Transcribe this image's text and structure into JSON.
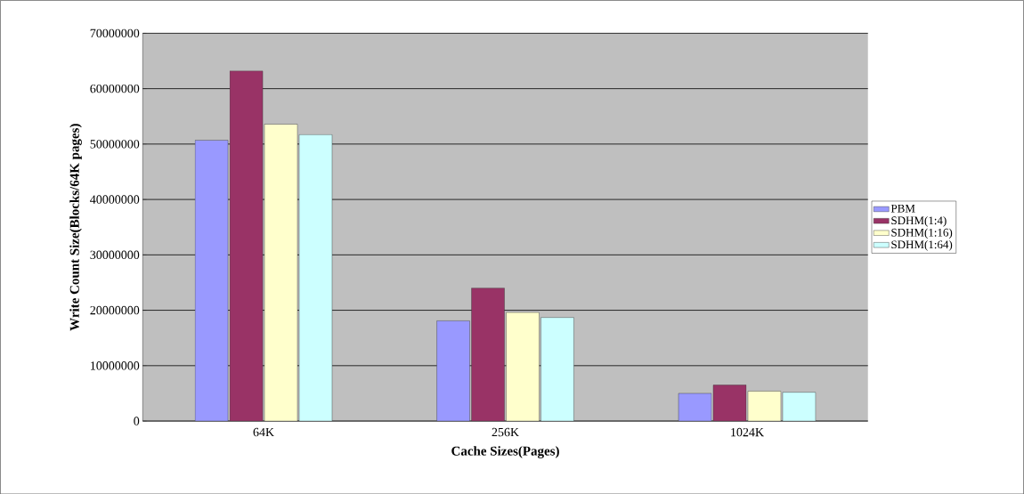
{
  "chart_data": {
    "type": "bar",
    "xlabel": "Cache Sizes(Pages)",
    "ylabel": "Write Count Size(Blocks/64K pages)",
    "categories": [
      "64K",
      "256K",
      "1024K"
    ],
    "series": [
      {
        "name": "PBM",
        "color": "#9999ff",
        "values": [
          50700000,
          18100000,
          5000000
        ]
      },
      {
        "name": "SDHM(1:4)",
        "color": "#993366",
        "values": [
          63200000,
          24000000,
          6500000
        ]
      },
      {
        "name": "SDHM(1:16)",
        "color": "#ffffcc",
        "values": [
          53600000,
          19600000,
          5400000
        ]
      },
      {
        "name": "SDHM(1:64)",
        "color": "#ccffff",
        "values": [
          51700000,
          18700000,
          5200000
        ]
      }
    ],
    "ylim": [
      0,
      70000000
    ],
    "yticks": [
      0,
      10000000,
      20000000,
      30000000,
      40000000,
      50000000,
      60000000,
      70000000
    ],
    "grid": "y",
    "legend": "right"
  }
}
